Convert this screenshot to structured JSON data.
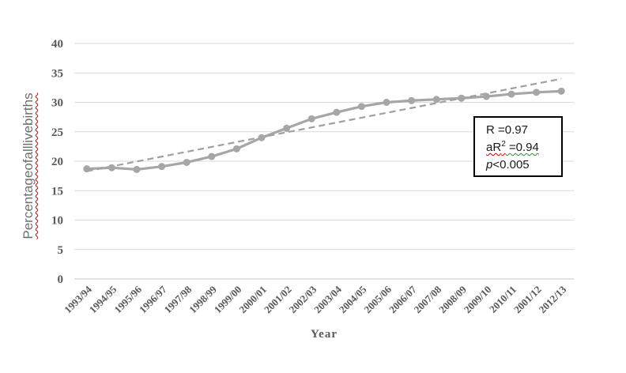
{
  "chart_data": {
    "type": "line",
    "title": "",
    "xlabel": "Year",
    "ylabel": "Percentageofalllivebirths",
    "ylim": [
      0,
      40
    ],
    "yticks": [
      0,
      5,
      10,
      15,
      20,
      25,
      30,
      35,
      40
    ],
    "grid": "horizontal",
    "legend_position": "none",
    "categories": [
      "1993/94",
      "1994/95",
      "1995/96",
      "1996/97",
      "1997/98",
      "1998/99",
      "1999/00",
      "2000/01",
      "2001/02",
      "2002/03",
      "2003/04",
      "2004/05",
      "2005/06",
      "2006/07",
      "2007/08",
      "2008/09",
      "2009/10",
      "2010/11",
      "2001/12",
      "2012/13"
    ],
    "series": [
      {
        "name": "percentage-of-all-live-births",
        "style": "solid-with-round-markers",
        "values": [
          18.7,
          18.9,
          18.6,
          19.1,
          19.8,
          20.8,
          22.1,
          24.0,
          25.6,
          27.2,
          28.3,
          29.3,
          30.0,
          30.3,
          30.5,
          30.7,
          31.0,
          31.4,
          31.7,
          31.9
        ]
      },
      {
        "name": "linear-trendline",
        "style": "dashed",
        "endpoint_values": [
          18.3,
          34.0
        ]
      }
    ]
  },
  "annotation": {
    "r_line": "R =0.97",
    "ar_prefix": "aR",
    "ar_sup": "2",
    "ar_rest": " =0.94",
    "p_italic": "p",
    "p_rest": "<0.005"
  },
  "colors": {
    "series_line": "#a6a6a6",
    "trend_line": "#a1a1a1",
    "gridline": "#d9d9d9",
    "axis_line": "#c6c6c6",
    "tick_label": "#595959",
    "axis_title": "#595959",
    "annotation_text": "#1a1a1a"
  }
}
